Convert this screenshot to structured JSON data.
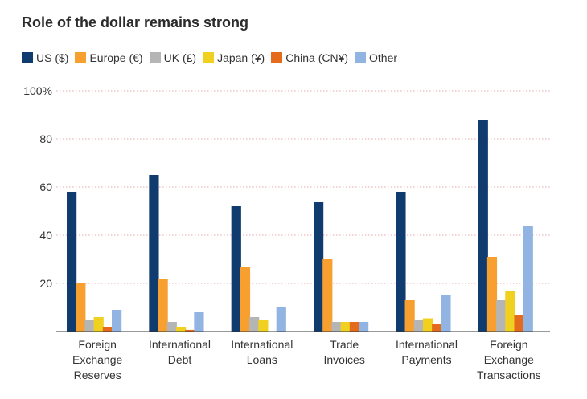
{
  "colors": {
    "background": "#ffffff",
    "title_text": "#2b2b2b",
    "grid": "#e7a9a9",
    "axis": "#333333"
  },
  "chart_data": {
    "type": "bar",
    "title": "Role of the dollar remains strong",
    "xlabel": "",
    "ylabel": "",
    "ylim": [
      0,
      100
    ],
    "yticks": [
      20,
      40,
      60,
      80,
      100
    ],
    "ytick_labels": [
      "20",
      "40",
      "60",
      "80",
      "100%"
    ],
    "grid": "horizontal dotted",
    "legend_position": "top-left",
    "categories": [
      "Foreign Exchange Reserves",
      "International Debt",
      "International Loans",
      "Trade Invoices",
      "International Payments",
      "Foreign Exchange Transactions"
    ],
    "category_lines": [
      [
        "Foreign",
        "Exchange",
        "Reserves"
      ],
      [
        "International",
        "Debt"
      ],
      [
        "International",
        "Loans"
      ],
      [
        "Trade",
        "Invoices"
      ],
      [
        "International",
        "Payments"
      ],
      [
        "Foreign",
        "Exchange",
        "Transactions"
      ]
    ],
    "series": [
      {
        "name": "US ($)",
        "color": "#0f3b6e",
        "values": [
          58,
          65,
          52,
          54,
          58,
          88
        ]
      },
      {
        "name": "Europe (€)",
        "color": "#f7a030",
        "values": [
          20,
          22,
          27,
          30,
          13,
          31
        ]
      },
      {
        "name": "UK (£)",
        "color": "#b5b5b5",
        "values": [
          5,
          4,
          6,
          4,
          5,
          13
        ]
      },
      {
        "name": "Japan (¥)",
        "color": "#f0d11f",
        "values": [
          6,
          2,
          5,
          4,
          5.5,
          17
        ]
      },
      {
        "name": "China (CN¥)",
        "color": "#e46a1c",
        "values": [
          2,
          0.7,
          0,
          4,
          3,
          7
        ]
      },
      {
        "name": "Other",
        "color": "#92b4e3",
        "values": [
          9,
          8,
          10,
          4,
          15,
          44
        ]
      }
    ]
  }
}
